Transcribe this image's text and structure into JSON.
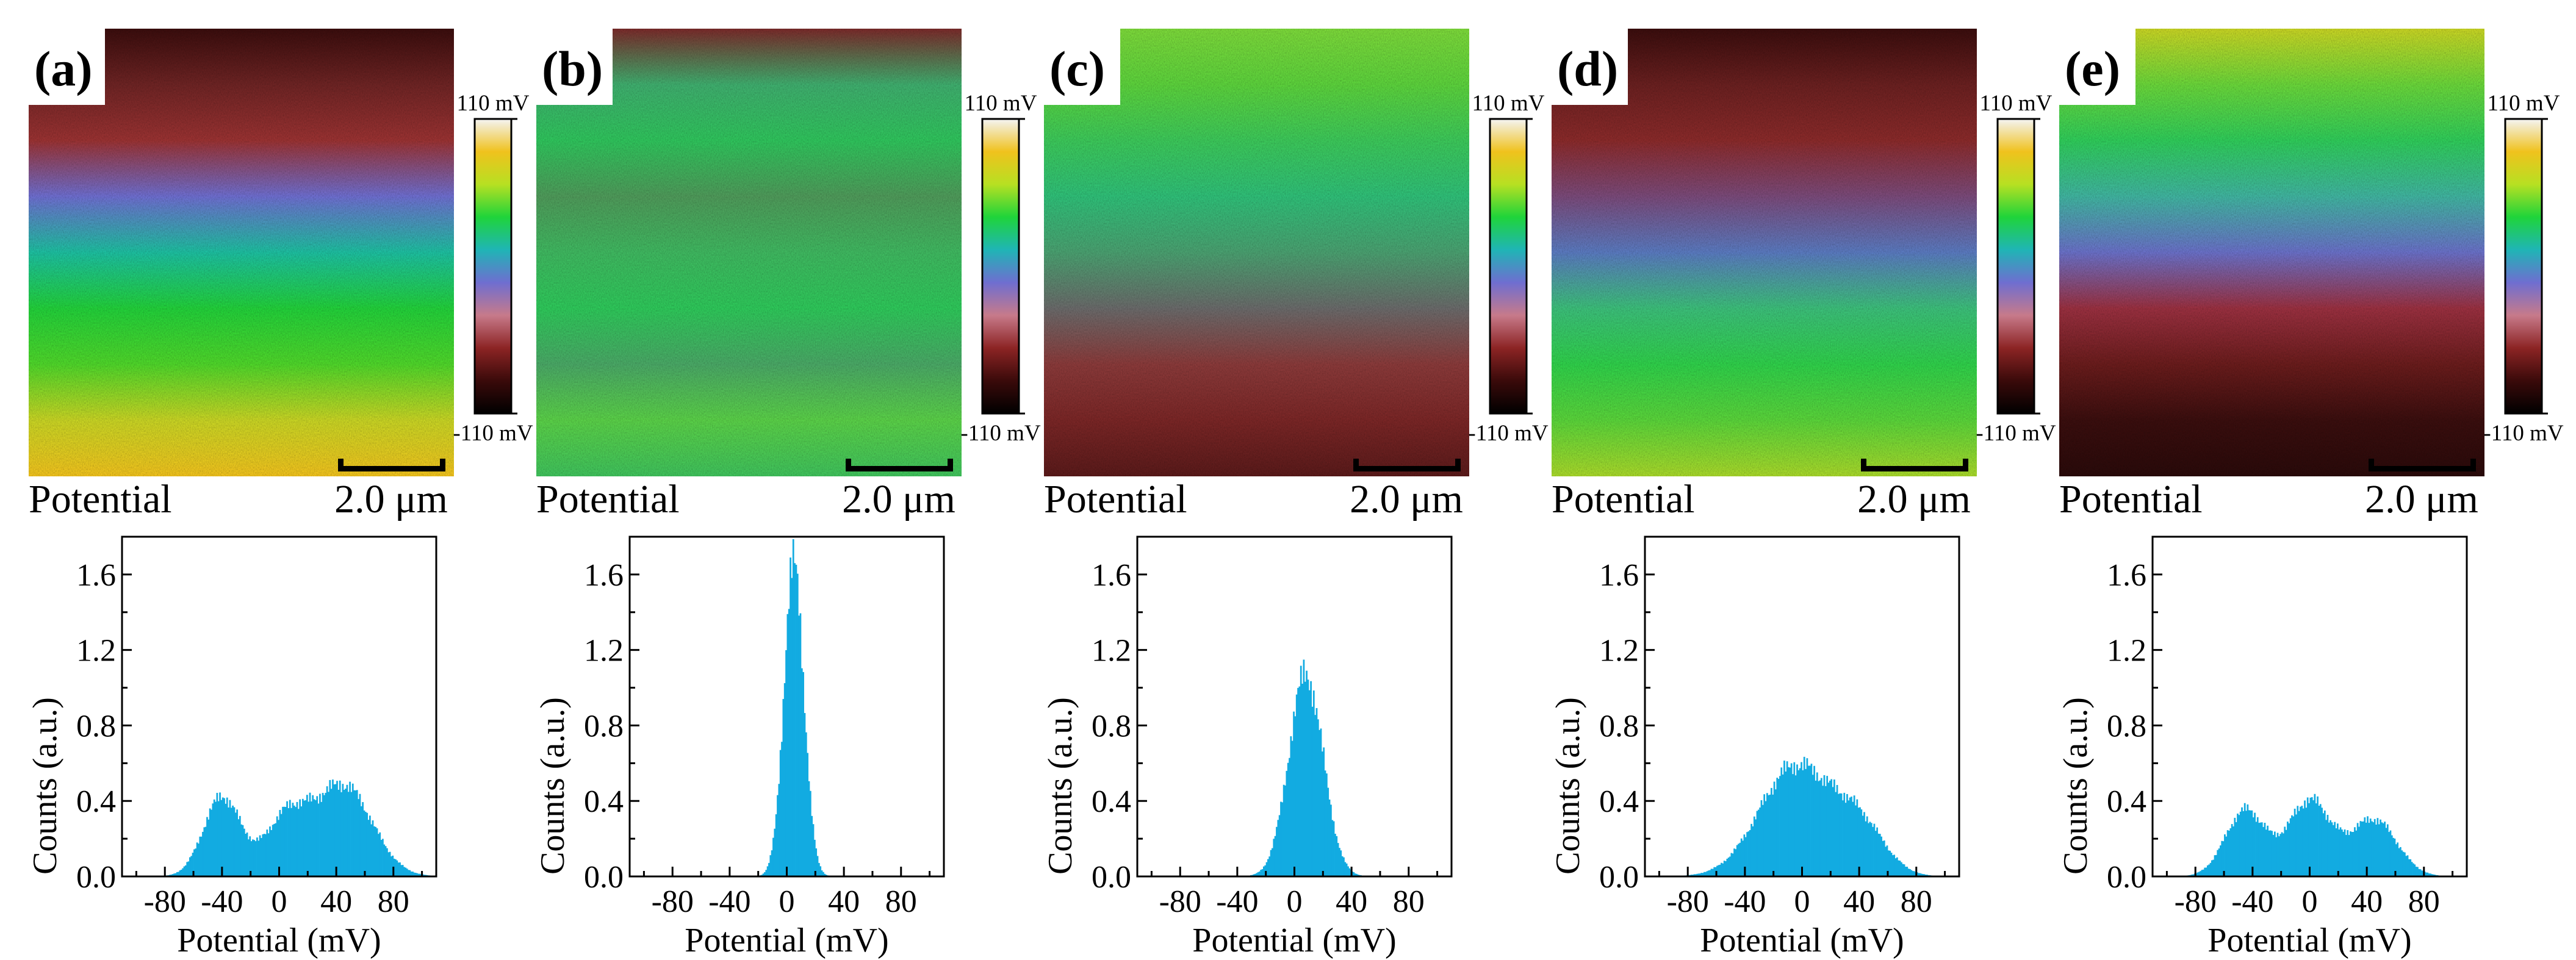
{
  "figure": {
    "map_title": "Potential",
    "scale_bar": "2.0 μm",
    "colorbar_max": "110 mV",
    "colorbar_min": "-110 mV",
    "colorbar_stops": [
      "#000000",
      "#3a0a0a",
      "#8c2424",
      "#c77a8a",
      "#6f6ed0",
      "#1fb5b5",
      "#1fd43a",
      "#b7e022",
      "#f0c21d",
      "#f4f4f4"
    ],
    "histogram_color": "#12abe1",
    "map_colors": {
      "a": [
        "#3a0d0d",
        "#6e2424",
        "#9a3232",
        "#6e6ed0",
        "#1dbfa0",
        "#22d03a",
        "#4fd62a",
        "#c8d424",
        "#f0c21d"
      ],
      "b": [
        "#7a2a2a",
        "#3fae6e",
        "#2fc45c",
        "#4f9a5a",
        "#3fb860",
        "#2ec85a",
        "#4aa866",
        "#5ad048",
        "#3fc25c"
      ],
      "c": [
        "#7cd83a",
        "#5cd23c",
        "#3cc85a",
        "#2fbf78",
        "#4aa070",
        "#6a6a6a",
        "#8a3a3a",
        "#7a2626",
        "#5a1a1a"
      ],
      "d": [
        "#3a0d0d",
        "#6a2020",
        "#8a2a2a",
        "#7a4a7a",
        "#5a7ac0",
        "#3cbf7a",
        "#2fd04a",
        "#5ad43a",
        "#a8d82a"
      ],
      "e": [
        "#c8d424",
        "#6ad63a",
        "#2fcc5a",
        "#40b4a0",
        "#6a70c8",
        "#9a3040",
        "#6a1c1c",
        "#3a0e0e",
        "#2a0a0a"
      ]
    }
  },
  "chart_data": [
    {
      "type": "bar",
      "panel": "(a)",
      "title": "",
      "xlabel": "Potential (mV)",
      "ylabel": "Counts (a.u.)",
      "xlim": [
        -110,
        110
      ],
      "ylim": [
        0,
        1.8
      ],
      "xticks": [
        -80,
        -40,
        0,
        40,
        80
      ],
      "yticks": [
        0.0,
        0.4,
        0.8,
        1.2,
        1.6
      ],
      "xtick_labels": [
        "-80",
        "-40",
        "0",
        "40",
        "80"
      ],
      "ytick_labels": [
        "0.0",
        "0.4",
        "0.8",
        "1.2",
        "1.6"
      ],
      "components": [
        {
          "center": -40,
          "sigma": 13,
          "height": 0.42
        },
        {
          "center": 45,
          "sigma": 20,
          "height": 0.48
        },
        {
          "center": 5,
          "sigma": 15,
          "height": 0.3
        }
      ]
    },
    {
      "type": "bar",
      "panel": "(b)",
      "title": "",
      "xlabel": "Potential (mV)",
      "ylabel": "Counts (a.u.)",
      "xlim": [
        -110,
        110
      ],
      "ylim": [
        0,
        1.8
      ],
      "xticks": [
        -80,
        -40,
        0,
        40,
        80
      ],
      "yticks": [
        0.0,
        0.4,
        0.8,
        1.2,
        1.6
      ],
      "xtick_labels": [
        "-80",
        "-40",
        "0",
        "40",
        "80"
      ],
      "ytick_labels": [
        "0.0",
        "0.4",
        "0.8",
        "1.2",
        "1.6"
      ],
      "components": [
        {
          "center": 5,
          "sigma": 7,
          "height": 1.65
        }
      ]
    },
    {
      "type": "bar",
      "panel": "(c)",
      "title": "",
      "xlabel": "Potential (mV)",
      "ylabel": "Counts (a.u.)",
      "xlim": [
        -110,
        110
      ],
      "ylim": [
        0,
        1.8
      ],
      "xticks": [
        -80,
        -40,
        0,
        40,
        80
      ],
      "yticks": [
        0.0,
        0.4,
        0.8,
        1.2,
        1.6
      ],
      "xtick_labels": [
        "-80",
        "-40",
        "0",
        "40",
        "80"
      ],
      "ytick_labels": [
        "0.0",
        "0.4",
        "0.8",
        "1.2",
        "1.6"
      ],
      "components": [
        {
          "center": 8,
          "sigma": 12,
          "height": 1.07
        }
      ]
    },
    {
      "type": "bar",
      "panel": "(d)",
      "title": "",
      "xlabel": "Potential (mV)",
      "ylabel": "Counts (a.u.)",
      "xlim": [
        -110,
        110
      ],
      "ylim": [
        0,
        1.8
      ],
      "xticks": [
        -80,
        -40,
        0,
        40,
        80
      ],
      "yticks": [
        0.0,
        0.4,
        0.8,
        1.2,
        1.6
      ],
      "xtick_labels": [
        "-80",
        "-40",
        "0",
        "40",
        "80"
      ],
      "ytick_labels": [
        "0.0",
        "0.4",
        "0.8",
        "1.2",
        "1.6"
      ],
      "components": [
        {
          "center": -5,
          "sigma": 25,
          "height": 0.58
        },
        {
          "center": 40,
          "sigma": 18,
          "height": 0.25
        }
      ]
    },
    {
      "type": "bar",
      "panel": "(e)",
      "title": "",
      "xlabel": "Potential (mV)",
      "ylabel": "Counts (a.u.)",
      "xlim": [
        -110,
        110
      ],
      "ylim": [
        0,
        1.8
      ],
      "xticks": [
        -80,
        -40,
        0,
        40,
        80
      ],
      "yticks": [
        0.0,
        0.4,
        0.8,
        1.2,
        1.6
      ],
      "xtick_labels": [
        "-80",
        "-40",
        "0",
        "40",
        "80"
      ],
      "ytick_labels": [
        "0.0",
        "0.4",
        "0.8",
        "1.2",
        "1.6"
      ],
      "components": [
        {
          "center": -45,
          "sigma": 14,
          "height": 0.35
        },
        {
          "center": 0,
          "sigma": 15,
          "height": 0.4
        },
        {
          "center": 45,
          "sigma": 16,
          "height": 0.3
        }
      ]
    }
  ]
}
